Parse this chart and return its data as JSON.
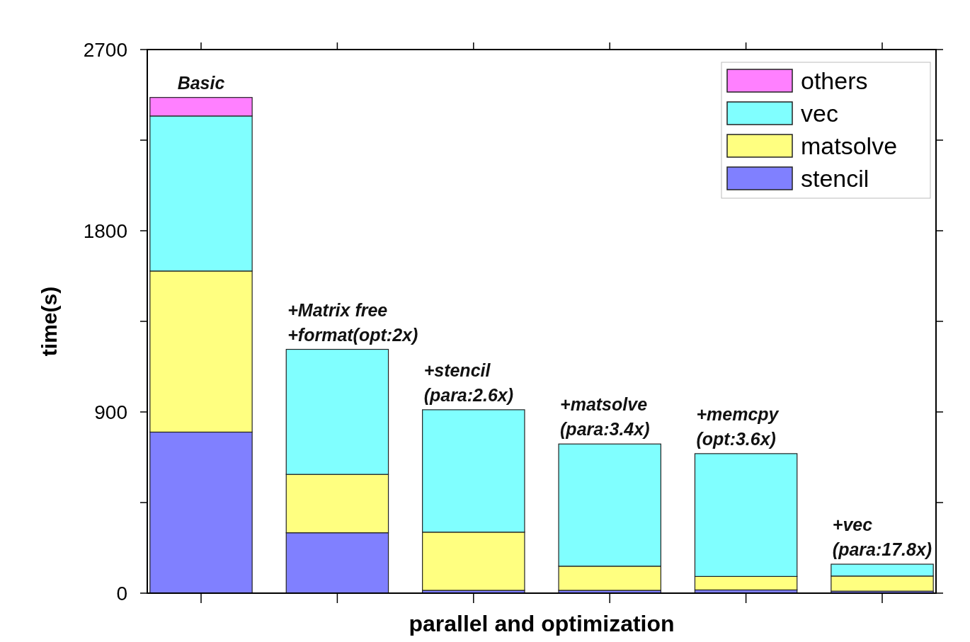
{
  "chart_data": {
    "type": "bar",
    "stacked": true,
    "xlabel": "parallel and optimization",
    "ylabel": "time(s)",
    "categories": [
      null,
      null,
      null,
      null,
      null,
      null
    ],
    "series": [
      {
        "name": "stencil",
        "color": "#8080ff",
        "values": [
          800,
          300,
          14,
          14,
          16,
          10
        ]
      },
      {
        "name": "matsolve",
        "color": "#ffff80",
        "values": [
          800,
          290,
          289,
          120,
          67,
          75
        ]
      },
      {
        "name": "vec",
        "color": "#80ffff",
        "values": [
          770,
          621,
          608,
          607,
          610,
          59
        ]
      },
      {
        "name": "others",
        "color": "#ff80ff",
        "values": [
          92,
          null,
          null,
          null,
          null,
          null
        ]
      }
    ],
    "ylim": [
      0,
      2700
    ],
    "yticks": [
      0,
      {
        "value": 450,
        "label": null
      },
      900,
      {
        "value": 1350,
        "label": null
      },
      1800,
      {
        "value": 2250,
        "label": null
      },
      2700
    ],
    "annotations": [
      "Basic",
      "+Matrix free\n+format(opt:2x)",
      "+stencil\n(para:2.6x)",
      "+matsolve\n(para:3.4x)",
      "+memcpy\n(opt:3.6x)",
      "+vec\n(para:17.8x)"
    ],
    "legend": "top right",
    "grid": false
  }
}
